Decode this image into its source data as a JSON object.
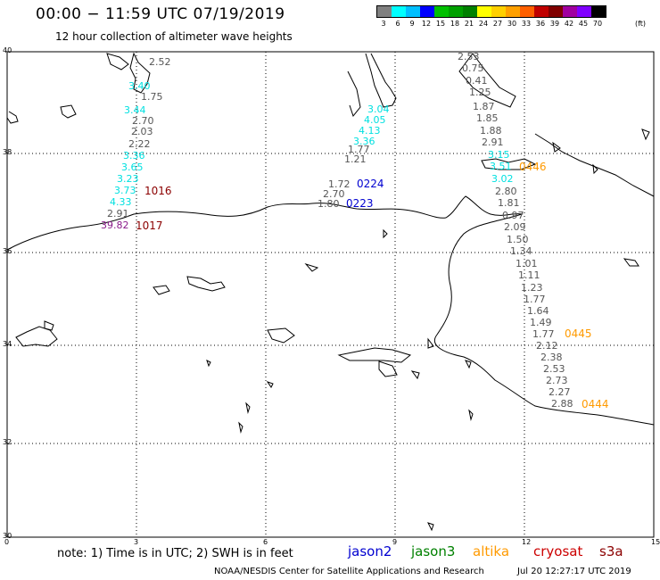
{
  "header": {
    "title": "00:00 − 11:59 UTC 07/19/2019",
    "subtitle": "12 hour collection of altimeter wave heights"
  },
  "colorbar": {
    "unit": "(ft)",
    "colors": [
      "#808080",
      "#00ffff",
      "#00bfff",
      "#0000ff",
      "#00c000",
      "#00a000",
      "#008000",
      "#ffff00",
      "#ffd000",
      "#ffa000",
      "#ff6000",
      "#c00000",
      "#800000",
      "#a000a0",
      "#8000ff",
      "#000000"
    ],
    "labels": [
      "3",
      "6",
      "9",
      "12",
      "15",
      "18",
      "21",
      "24",
      "27",
      "30",
      "33",
      "36",
      "39",
      "42",
      "45",
      "70"
    ]
  },
  "axes": {
    "lat_labels": [
      "40",
      "38",
      "36",
      "34",
      "32",
      "30"
    ],
    "lon_labels": [
      "0",
      "3",
      "6",
      "9",
      "12",
      "15"
    ]
  },
  "tracks": [
    {
      "id": "1016",
      "satellite": "cryosat",
      "values": [
        "2.52",
        "3.40",
        "1.75",
        "3.44",
        "2.70",
        "2.03",
        "2.22",
        "3.36",
        "3.65",
        "3.23",
        "3.73",
        "4.33",
        "2.91",
        "39.82"
      ]
    },
    {
      "id": "1017",
      "satellite": "cryosat",
      "values": []
    },
    {
      "id": "0224",
      "satellite": "jason2",
      "values": [
        "1.72",
        "2.70",
        "1.80"
      ]
    },
    {
      "id": "0223",
      "satellite": "jason2",
      "values": [
        "3.04",
        "4.05",
        "4.13",
        "3.36",
        "1.77",
        "1.21"
      ]
    },
    {
      "id": "0446",
      "satellite": "altika",
      "values": [
        "2.53",
        "0.75",
        "0.41",
        "1.25",
        "1.87",
        "1.85",
        "1.88",
        "2.91",
        "3.15",
        "3.51",
        "3.02",
        "2.80",
        "1.81",
        "0.97",
        "2.09",
        "1.50",
        "1.34",
        "1.01",
        "1.11",
        "1.23",
        "1.77",
        "1.64",
        "1.49",
        "1.77"
      ]
    },
    {
      "id": "0445",
      "satellite": "altika",
      "values": [
        "2.12",
        "2.38",
        "2.53",
        "2.73",
        "2.27",
        "2.88"
      ]
    },
    {
      "id": "0444",
      "satellite": "altika",
      "values": []
    }
  ],
  "footer": {
    "note": "note:  1) Time is in UTC;  2) SWH is in feet",
    "satellites": [
      {
        "name": "jason2",
        "color": "#0000d0"
      },
      {
        "name": "jason3",
        "color": "#008000"
      },
      {
        "name": "altika",
        "color": "#ff9a00"
      },
      {
        "name": "cryosat",
        "color": "#cc0000"
      },
      {
        "name": "s3a",
        "color": "#8b0000"
      }
    ],
    "credit": "NOAA/NESDIS Center for Satellite Applications and Research",
    "timestamp": "Jul 20 12:27:17 UTC 2019"
  }
}
